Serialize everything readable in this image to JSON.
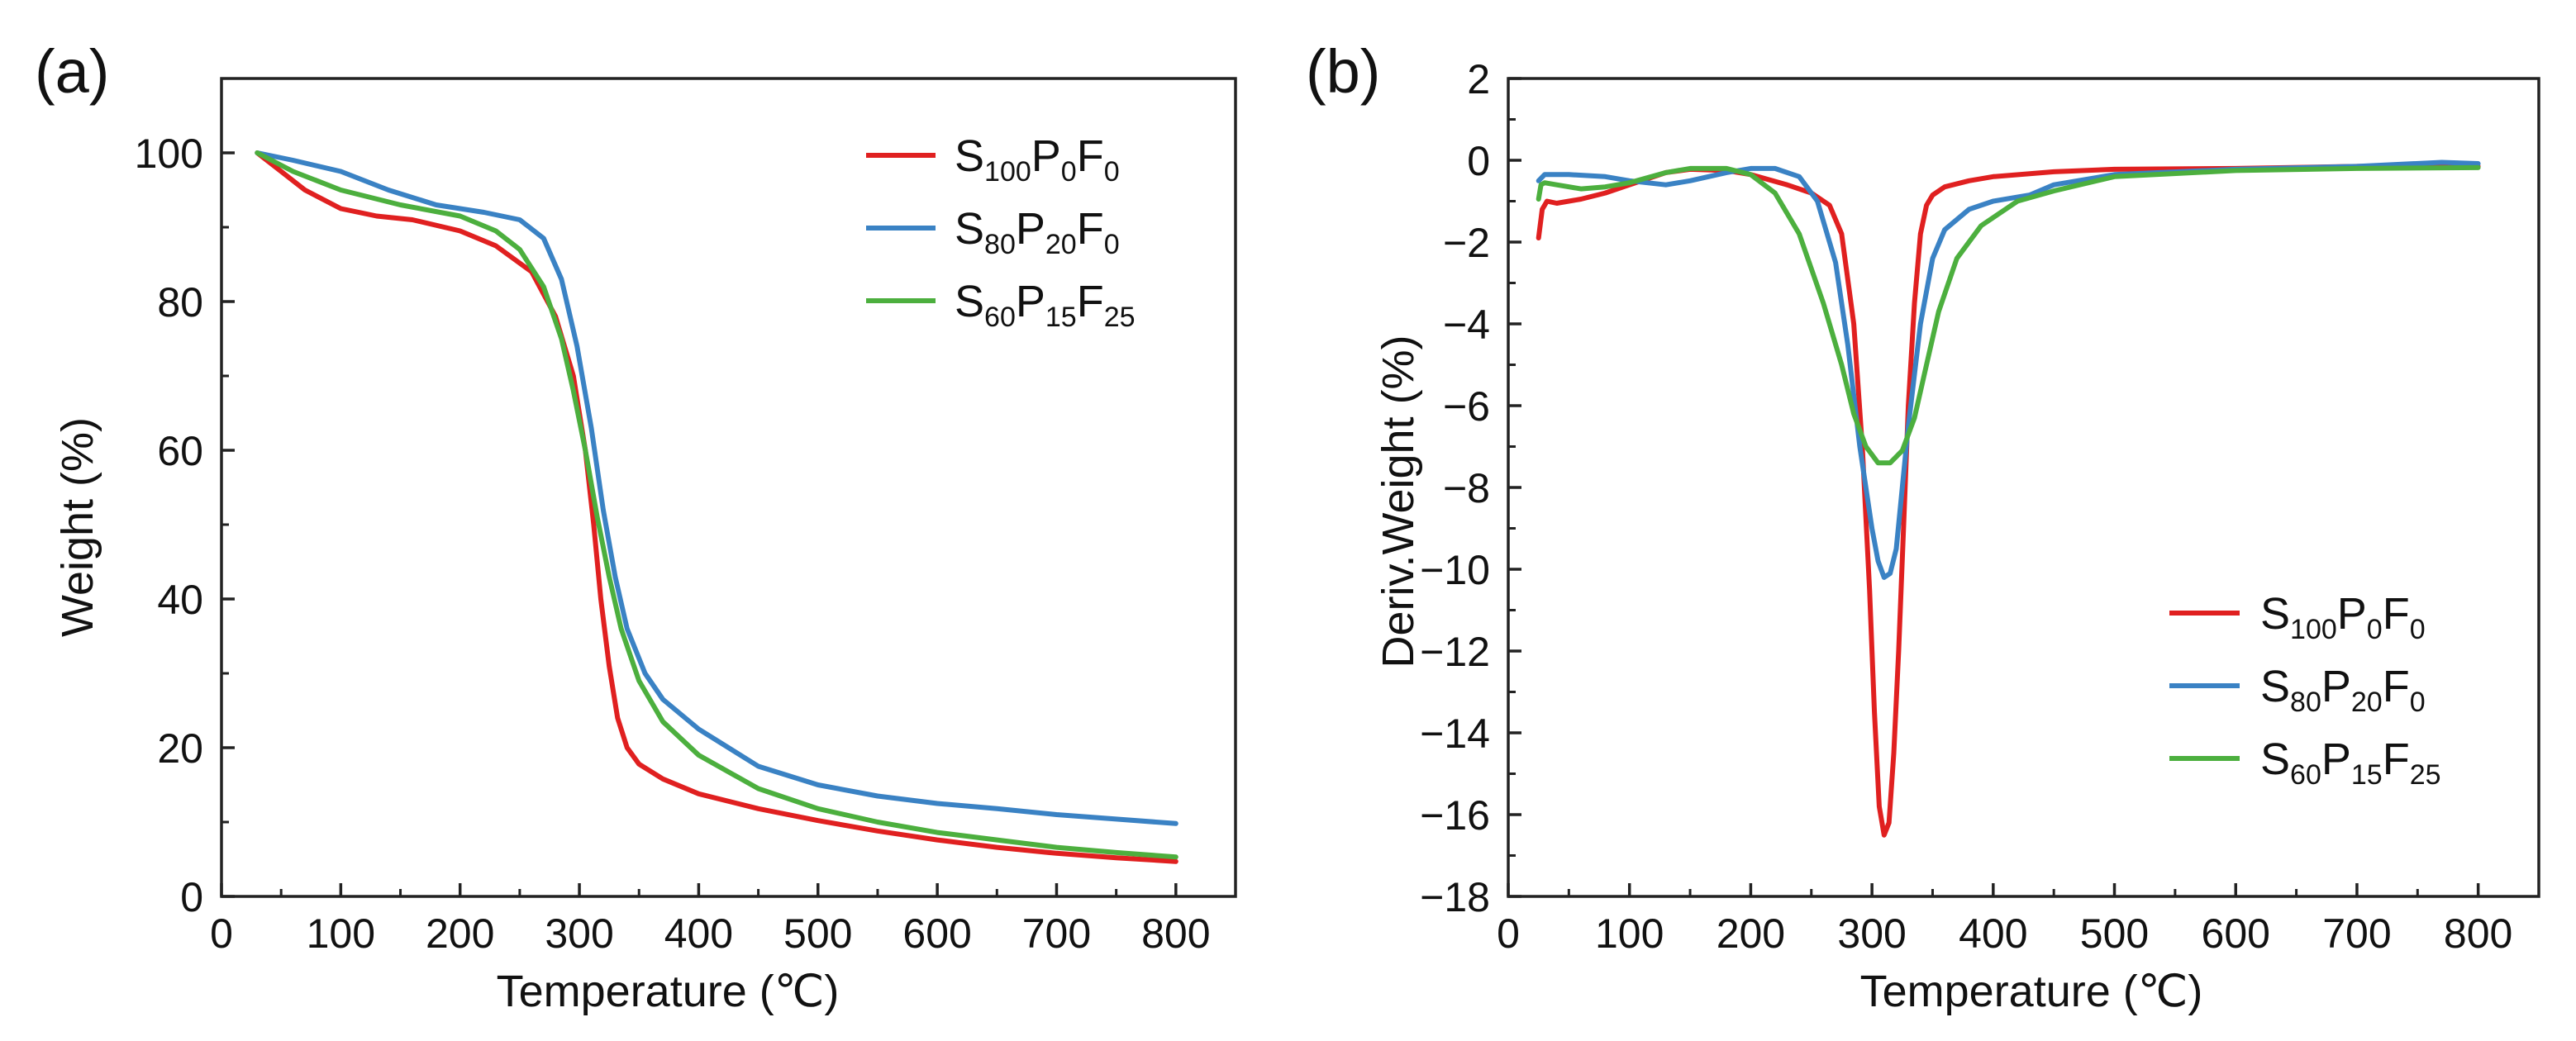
{
  "chart_data": [
    {
      "panel_label": "(a)",
      "type": "line",
      "xlabel": "Temperature (℃)",
      "ylabel": "Weight (%)",
      "xlim": [
        0,
        850
      ],
      "ylim": [
        0,
        110
      ],
      "xticks": [
        0,
        100,
        200,
        300,
        400,
        500,
        600,
        700,
        800
      ],
      "yticks": [
        0,
        20,
        40,
        60,
        80,
        100
      ],
      "legend_position": "top-right",
      "series": [
        {
          "name": "S100P0F0",
          "legend": [
            {
              "t": "S",
              "sub": false
            },
            {
              "t": "100",
              "sub": true
            },
            {
              "t": "P",
              "sub": false
            },
            {
              "t": "0",
              "sub": true
            },
            {
              "t": "F",
              "sub": false
            },
            {
              "t": "0",
              "sub": true
            }
          ],
          "color": "#e02020",
          "x": [
            30,
            50,
            70,
            100,
            130,
            160,
            200,
            230,
            260,
            280,
            295,
            305,
            312,
            318,
            325,
            332,
            340,
            350,
            370,
            400,
            450,
            500,
            550,
            600,
            650,
            700,
            750,
            800
          ],
          "y": [
            100,
            97.5,
            95,
            92.5,
            91.5,
            91,
            89.5,
            87.5,
            84,
            78,
            70,
            60,
            50,
            40,
            31,
            24,
            20,
            17.8,
            15.8,
            13.8,
            11.8,
            10.2,
            8.8,
            7.6,
            6.6,
            5.8,
            5.2,
            4.7
          ]
        },
        {
          "name": "S80P20F0",
          "legend": [
            {
              "t": "S",
              "sub": false
            },
            {
              "t": "80",
              "sub": true
            },
            {
              "t": "P",
              "sub": false
            },
            {
              "t": "20",
              "sub": true
            },
            {
              "t": "F",
              "sub": false
            },
            {
              "t": "0",
              "sub": true
            }
          ],
          "color": "#3a82c4",
          "x": [
            30,
            60,
            100,
            140,
            180,
            220,
            250,
            270,
            285,
            298,
            310,
            320,
            330,
            340,
            355,
            370,
            400,
            450,
            500,
            550,
            600,
            650,
            700,
            750,
            800
          ],
          "y": [
            100,
            99,
            97.5,
            95,
            93,
            92,
            91,
            88.5,
            83,
            74,
            63,
            52,
            43,
            36,
            30,
            26.5,
            22.5,
            17.5,
            15,
            13.5,
            12.5,
            11.8,
            11,
            10.4,
            9.8
          ]
        },
        {
          "name": "S60P15F25",
          "legend": [
            {
              "t": "S",
              "sub": false
            },
            {
              "t": "60",
              "sub": true
            },
            {
              "t": "P",
              "sub": false
            },
            {
              "t": "15",
              "sub": true
            },
            {
              "t": "F",
              "sub": false
            },
            {
              "t": "25",
              "sub": true
            }
          ],
          "color": "#4caf3e",
          "x": [
            30,
            60,
            100,
            150,
            200,
            230,
            250,
            270,
            285,
            295,
            305,
            315,
            325,
            335,
            350,
            370,
            400,
            450,
            500,
            550,
            600,
            650,
            700,
            750,
            800
          ],
          "y": [
            100,
            97.5,
            95,
            93,
            91.5,
            89.5,
            87,
            82,
            75,
            68,
            60,
            51,
            43,
            36,
            29,
            23.5,
            19,
            14.5,
            11.8,
            10,
            8.6,
            7.6,
            6.6,
            5.9,
            5.3
          ]
        }
      ]
    },
    {
      "panel_label": "(b)",
      "type": "line",
      "xlabel": "Temperature (℃)",
      "ylabel": "Deriv.Weight (%)",
      "xlim": [
        0,
        850
      ],
      "ylim": [
        -18,
        2
      ],
      "xticks": [
        0,
        100,
        200,
        300,
        400,
        500,
        600,
        700,
        800
      ],
      "yticks": [
        -18,
        -16,
        -14,
        -12,
        -10,
        -8,
        -6,
        -4,
        -2,
        0,
        2
      ],
      "legend_position": "bottom-right",
      "series": [
        {
          "name": "S100P0F0",
          "legend": [
            {
              "t": "S",
              "sub": false
            },
            {
              "t": "100",
              "sub": true
            },
            {
              "t": "P",
              "sub": false
            },
            {
              "t": "0",
              "sub": true
            },
            {
              "t": "F",
              "sub": false
            },
            {
              "t": "0",
              "sub": true
            }
          ],
          "color": "#e02020",
          "x": [
            25,
            28,
            32,
            40,
            60,
            80,
            100,
            130,
            150,
            180,
            200,
            230,
            250,
            265,
            275,
            285,
            292,
            298,
            302,
            306,
            310,
            314,
            318,
            322,
            326,
            330,
            335,
            340,
            345,
            350,
            360,
            380,
            400,
            450,
            500,
            600,
            700,
            800
          ],
          "y": [
            -1.9,
            -1.2,
            -1.0,
            -1.05,
            -0.95,
            -0.8,
            -0.6,
            -0.3,
            -0.22,
            -0.25,
            -0.35,
            -0.6,
            -0.8,
            -1.1,
            -1.8,
            -4,
            -7,
            -10.5,
            -13.5,
            -15.8,
            -16.5,
            -16.2,
            -14.5,
            -12,
            -9,
            -6,
            -3.5,
            -1.8,
            -1.1,
            -0.85,
            -0.65,
            -0.5,
            -0.4,
            -0.28,
            -0.22,
            -0.2,
            -0.15,
            -0.15
          ]
        },
        {
          "name": "S80P20F0",
          "legend": [
            {
              "t": "S",
              "sub": false
            },
            {
              "t": "80",
              "sub": true
            },
            {
              "t": "P",
              "sub": false
            },
            {
              "t": "20",
              "sub": true
            },
            {
              "t": "F",
              "sub": false
            },
            {
              "t": "0",
              "sub": true
            }
          ],
          "color": "#3a82c4",
          "x": [
            25,
            30,
            50,
            80,
            100,
            130,
            150,
            180,
            200,
            220,
            240,
            255,
            270,
            280,
            290,
            300,
            305,
            310,
            315,
            320,
            325,
            330,
            340,
            350,
            360,
            380,
            400,
            430,
            450,
            500,
            600,
            700,
            770,
            800
          ],
          "y": [
            -0.5,
            -0.35,
            -0.35,
            -0.4,
            -0.5,
            -0.6,
            -0.5,
            -0.3,
            -0.2,
            -0.2,
            -0.4,
            -1,
            -2.5,
            -4.5,
            -7,
            -9,
            -9.8,
            -10.2,
            -10.1,
            -9.5,
            -8,
            -6.5,
            -4,
            -2.4,
            -1.7,
            -1.2,
            -1.0,
            -0.85,
            -0.6,
            -0.35,
            -0.22,
            -0.15,
            -0.05,
            -0.08
          ]
        },
        {
          "name": "S60P15F25",
          "legend": [
            {
              "t": "S",
              "sub": false
            },
            {
              "t": "60",
              "sub": true
            },
            {
              "t": "P",
              "sub": false
            },
            {
              "t": "15",
              "sub": true
            },
            {
              "t": "F",
              "sub": false
            },
            {
              "t": "25",
              "sub": true
            }
          ],
          "color": "#4caf3e",
          "x": [
            25,
            27,
            30,
            40,
            60,
            80,
            100,
            130,
            150,
            180,
            200,
            220,
            240,
            260,
            275,
            285,
            295,
            305,
            315,
            325,
            335,
            345,
            355,
            370,
            390,
            420,
            450,
            500,
            600,
            700,
            800
          ],
          "y": [
            -0.95,
            -0.6,
            -0.55,
            -0.6,
            -0.7,
            -0.65,
            -0.55,
            -0.3,
            -0.2,
            -0.2,
            -0.35,
            -0.8,
            -1.8,
            -3.5,
            -5,
            -6.2,
            -7,
            -7.4,
            -7.4,
            -7.1,
            -6.3,
            -5,
            -3.7,
            -2.4,
            -1.6,
            -1.0,
            -0.75,
            -0.4,
            -0.25,
            -0.2,
            -0.18
          ]
        }
      ]
    }
  ]
}
